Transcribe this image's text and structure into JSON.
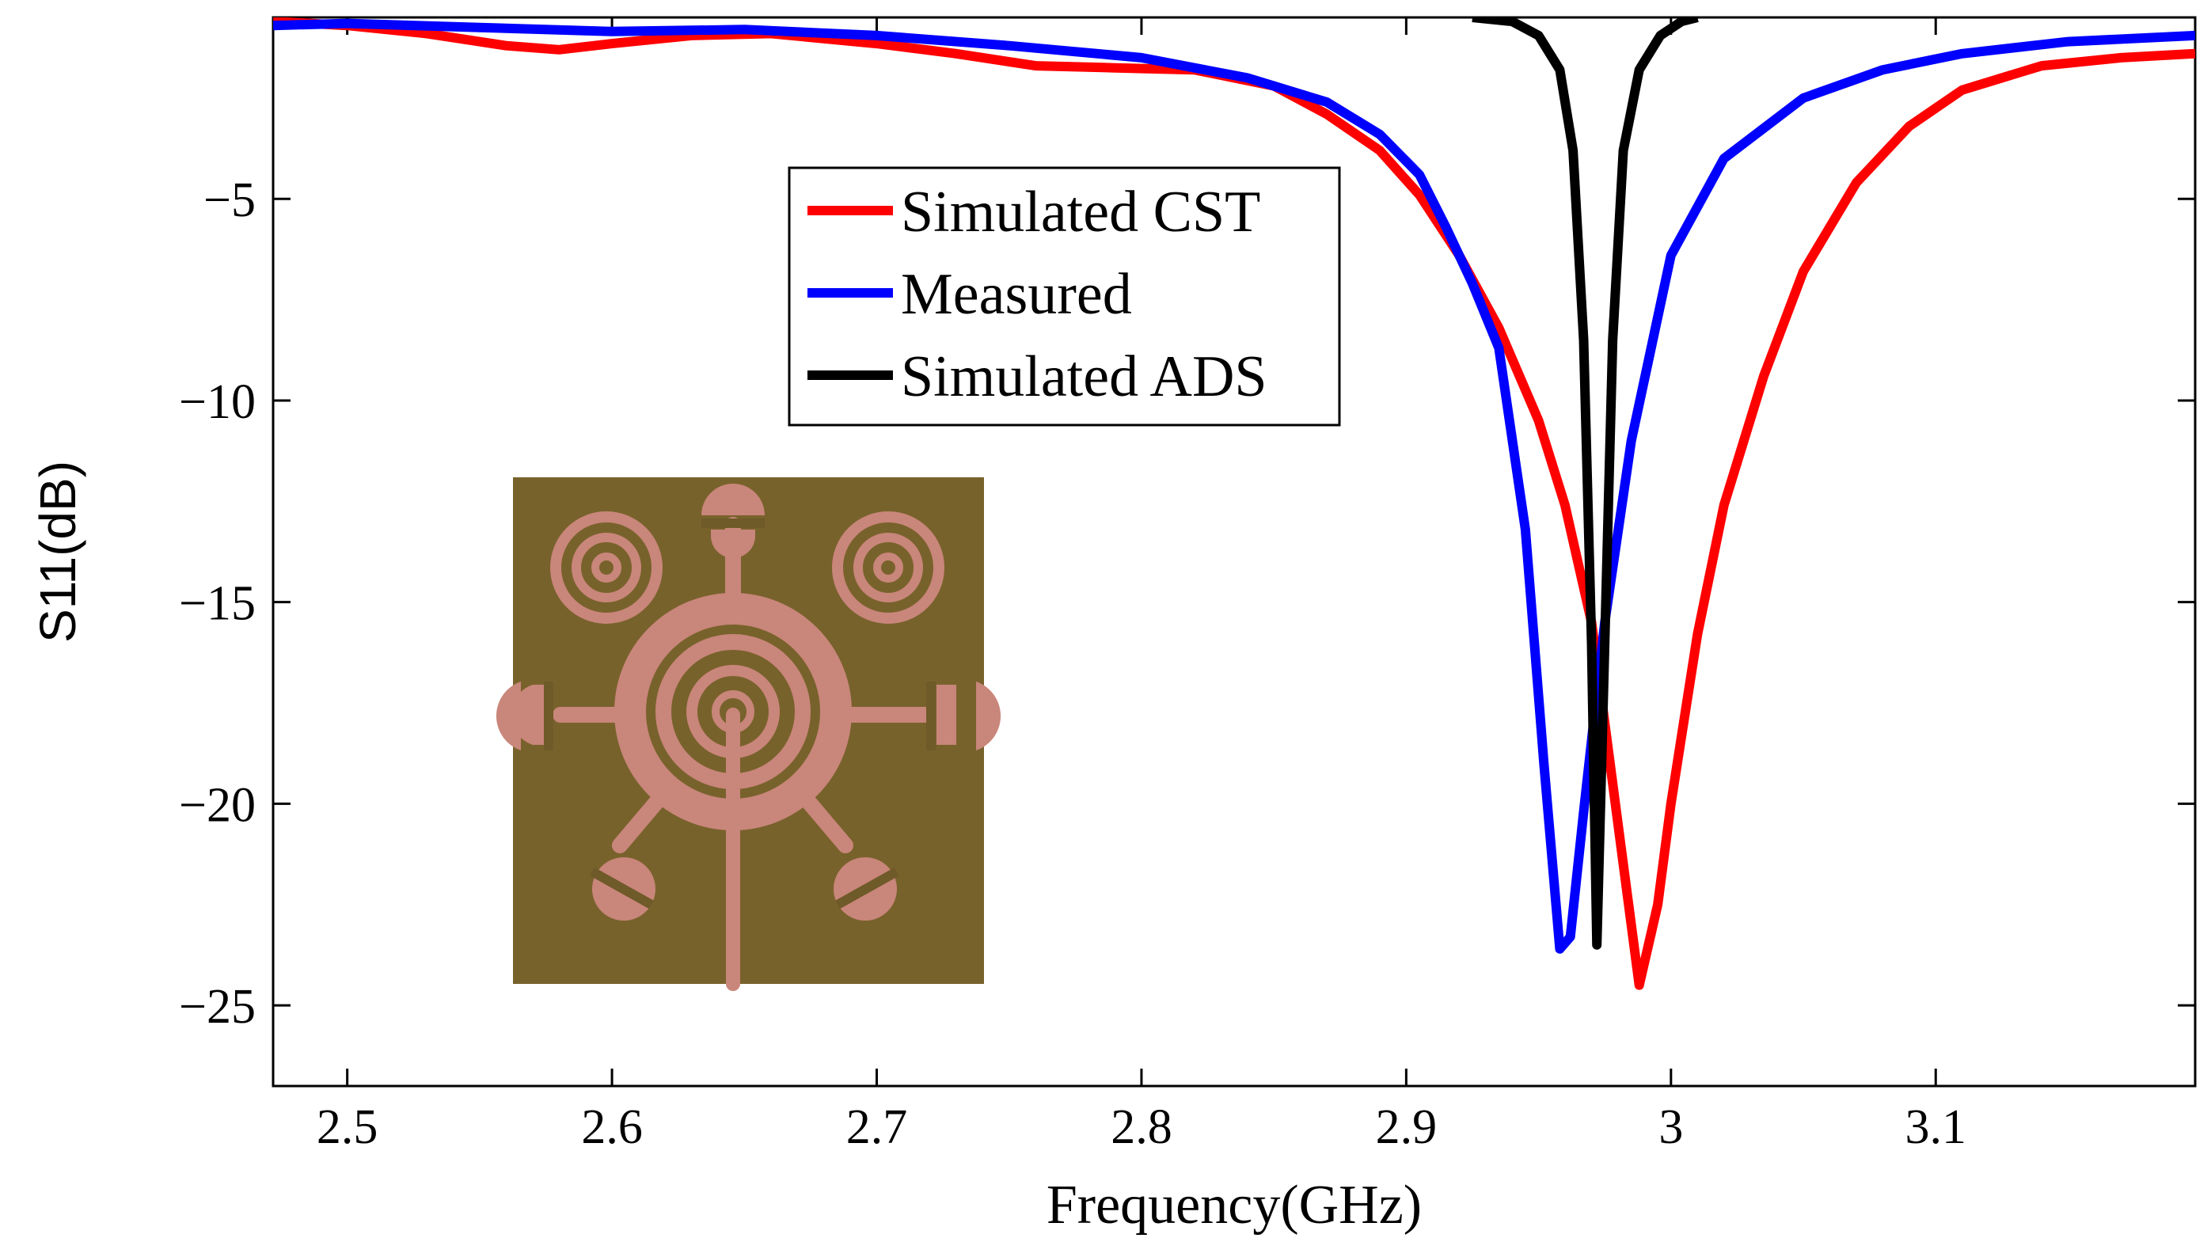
{
  "chart_data": {
    "type": "line",
    "title": "",
    "xlabel": "Frequency(GHz)",
    "ylabel": "S11(dB)",
    "xlim": [
      2.472,
      3.198
    ],
    "ylim": [
      -27,
      -0.5
    ],
    "grid": false,
    "legend_position": "upper-center",
    "x_ticks": [
      2.5,
      2.6,
      2.7,
      2.8,
      2.9,
      3.0,
      3.1
    ],
    "x_tick_labels": [
      "2.5",
      "2.6",
      "2.7",
      "2.8",
      "2.9",
      "3",
      "3.1"
    ],
    "y_ticks": [
      -5,
      -10,
      -15,
      -20,
      -25
    ],
    "y_tick_labels": [
      "−5",
      "−10",
      "−15",
      "−20",
      "−25"
    ],
    "series": [
      {
        "name": "Simulated CST",
        "color": "#ff0000",
        "x": [
          2.472,
          2.5,
          2.53,
          2.56,
          2.58,
          2.6,
          2.63,
          2.66,
          2.7,
          2.73,
          2.76,
          2.79,
          2.82,
          2.85,
          2.87,
          2.89,
          2.905,
          2.92,
          2.935,
          2.95,
          2.96,
          2.97,
          2.98,
          2.988,
          2.995,
          3.0,
          3.01,
          3.02,
          3.035,
          3.05,
          3.07,
          3.09,
          3.11,
          3.14,
          3.17,
          3.198
        ],
        "y": [
          -0.6,
          -0.7,
          -0.9,
          -1.2,
          -1.3,
          -1.15,
          -0.95,
          -0.9,
          -1.15,
          -1.4,
          -1.7,
          -1.75,
          -1.8,
          -2.2,
          -2.9,
          -3.8,
          -4.9,
          -6.4,
          -8.2,
          -10.5,
          -12.6,
          -15.5,
          -20.5,
          -24.5,
          -22.5,
          -20.0,
          -15.8,
          -12.6,
          -9.4,
          -6.8,
          -4.6,
          -3.2,
          -2.3,
          -1.7,
          -1.5,
          -1.4
        ]
      },
      {
        "name": "Measured",
        "color": "#0000ff",
        "x": [
          2.472,
          2.5,
          2.55,
          2.6,
          2.65,
          2.7,
          2.75,
          2.8,
          2.84,
          2.87,
          2.89,
          2.905,
          2.915,
          2.925,
          2.935,
          2.945,
          2.952,
          2.958,
          2.962,
          2.967,
          2.975,
          2.985,
          3.0,
          3.02,
          3.05,
          3.08,
          3.11,
          3.15,
          3.198
        ],
        "y": [
          -0.7,
          -0.65,
          -0.75,
          -0.85,
          -0.8,
          -0.95,
          -1.2,
          -1.5,
          -2.0,
          -2.6,
          -3.4,
          -4.4,
          -5.7,
          -7.1,
          -8.7,
          -13.2,
          -19.0,
          -23.6,
          -23.3,
          -20.2,
          -15.5,
          -11.0,
          -6.4,
          -4.0,
          -2.5,
          -1.8,
          -1.4,
          -1.1,
          -0.95
        ]
      },
      {
        "name": "Simulated ADS",
        "color": "#000000",
        "x": [
          2.925,
          2.94,
          2.95,
          2.958,
          2.963,
          2.967,
          2.97,
          2.972,
          2.975,
          2.978,
          2.982,
          2.988,
          2.996,
          3.004,
          3.01
        ],
        "y": [
          -0.5,
          -0.6,
          -0.95,
          -1.8,
          -3.8,
          -8.5,
          -16.0,
          -23.5,
          -16.0,
          -8.5,
          -3.8,
          -1.8,
          -0.95,
          -0.6,
          -0.5
        ]
      }
    ]
  },
  "legend": {
    "items": [
      {
        "label": "Simulated CST",
        "color": "#ff0000"
      },
      {
        "label": "Measured",
        "color": "#0000ff"
      },
      {
        "label": "Simulated ADS",
        "color": "#000000"
      }
    ]
  },
  "inset": {
    "icon": "antenna-photo-icon",
    "substrate_color": "#6e5828",
    "copper_color": "#c9867a"
  }
}
